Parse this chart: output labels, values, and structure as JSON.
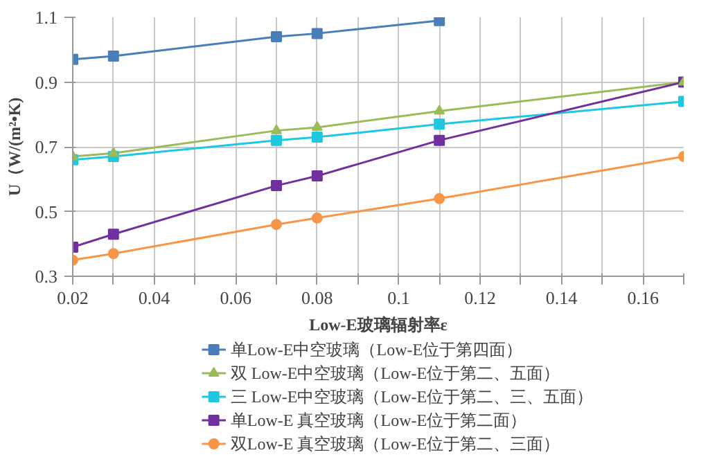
{
  "chart_data": {
    "type": "line",
    "xlabel": "Low-E玻璃辐射率ε",
    "ylabel": "U（W/(m²•K)",
    "x": [
      0.02,
      0.03,
      0.07,
      0.08,
      0.11,
      0.17
    ],
    "series": [
      {
        "name": "单Low-E中空玻璃（Low-E位于第四面）",
        "color": "#4a7ebb",
        "marker": "square",
        "values": [
          0.97,
          0.98,
          1.04,
          1.05,
          1.09,
          null
        ]
      },
      {
        "name": "双 Low-E中空玻璃（Low-E位于第二、五面）",
        "color": "#9bbb59",
        "marker": "triangle",
        "values": [
          0.67,
          0.68,
          0.75,
          0.76,
          0.81,
          0.9
        ]
      },
      {
        "name": "三 Low-E中空玻璃（Low-E位于第二、三、五面）",
        "color": "#1ec8e0",
        "marker": "square",
        "values": [
          0.66,
          0.67,
          0.72,
          0.73,
          0.77,
          0.84
        ]
      },
      {
        "name": "单Low-E 真空玻璃（Low-E位于第二面）",
        "color": "#7030a0",
        "marker": "square",
        "values": [
          0.39,
          0.43,
          0.58,
          0.61,
          0.72,
          0.9
        ]
      },
      {
        "name": "双Low-E 真空玻璃（Low-E位于第二、三面）",
        "color": "#f79646",
        "marker": "circle",
        "values": [
          0.35,
          0.37,
          0.46,
          0.48,
          0.54,
          0.67
        ]
      }
    ],
    "xlim": [
      0.02,
      0.17
    ],
    "xticks": [
      0.02,
      {
        "value": 0.03,
        "label": null
      },
      0.04,
      {
        "value": 0.05,
        "label": null
      },
      0.06,
      {
        "value": 0.07,
        "label": null
      },
      0.08,
      {
        "value": 0.09,
        "label": null
      },
      0.1,
      {
        "value": 0.11,
        "label": null
      },
      0.12,
      {
        "value": 0.13,
        "label": null
      },
      0.14,
      {
        "value": 0.15,
        "label": null
      },
      0.16,
      {
        "value": 0.17,
        "label": null
      }
    ],
    "ylim": [
      0.3,
      1.1
    ],
    "yticks": [
      0.3,
      0.5,
      0.7,
      0.9,
      1.1
    ],
    "grid": true,
    "legend": "bottom",
    "line_style": "solid"
  }
}
